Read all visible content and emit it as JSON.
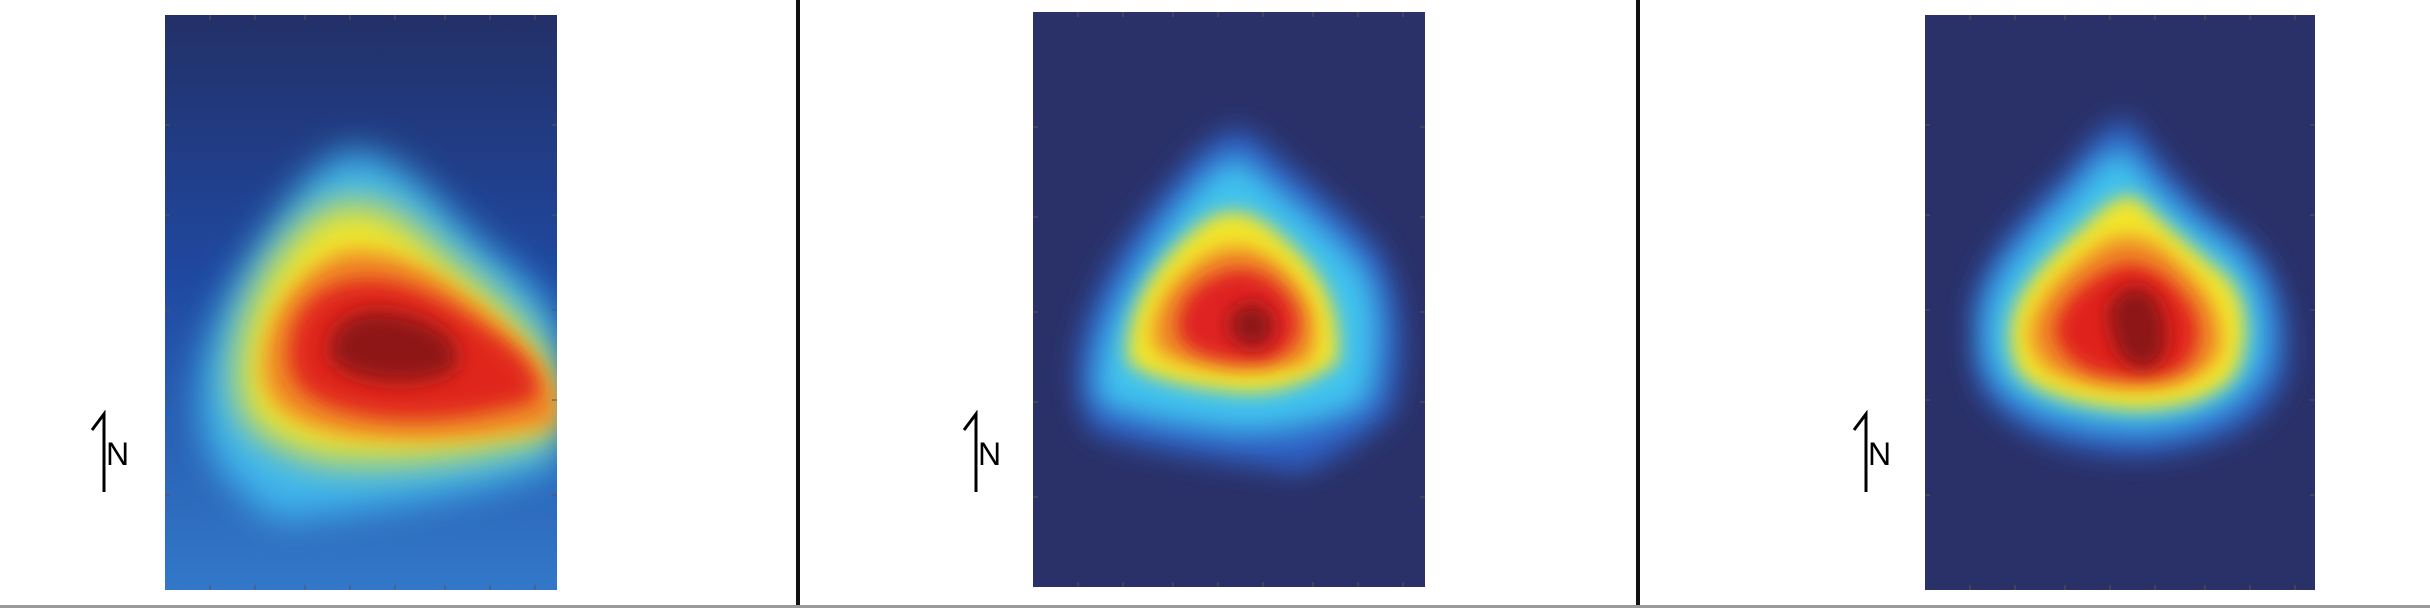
{
  "colors": {
    "background_low": "#2b3066",
    "background_panel1": "#1e4aa0",
    "cyan": "#39c6f0",
    "yellow": "#f4e827",
    "orange": "#f28a2a",
    "red": "#e3241f",
    "dark_red": "#8e1416"
  },
  "compass": "N",
  "panels": [
    {
      "name": "left",
      "north_label": "N"
    },
    {
      "name": "middle",
      "north_label": "N"
    },
    {
      "name": "right",
      "north_label": "N"
    }
  ]
}
